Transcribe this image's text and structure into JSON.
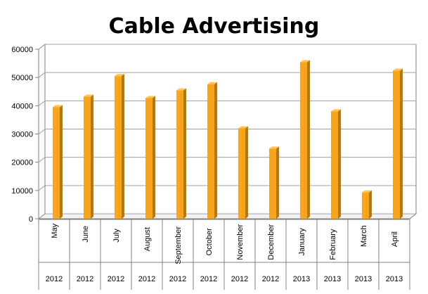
{
  "chart_data": {
    "type": "bar",
    "title": "Cable Advertising",
    "categories": [
      "May",
      "June",
      "July",
      "August",
      "September",
      "October",
      "November",
      "December",
      "January",
      "February",
      "March",
      "April"
    ],
    "years": [
      "2012",
      "2012",
      "2012",
      "2012",
      "2012",
      "2012",
      "2012",
      "2012",
      "2013",
      "2013",
      "2013",
      "2013"
    ],
    "values": [
      39500,
      43200,
      50500,
      42700,
      45400,
      47600,
      32000,
      24800,
      55400,
      38000,
      9300,
      52400
    ],
    "ylim": [
      0,
      60000
    ],
    "yticks": [
      0,
      10000,
      20000,
      30000,
      40000,
      50000,
      60000
    ],
    "grid": true,
    "legend": "none",
    "xlabel": "",
    "ylabel": "",
    "colors": {
      "bar_front": "#F7A51E",
      "bar_side": "#B57710",
      "bar_top": "#FCC456",
      "gridline": "#A0A0A0",
      "wall": "#FFFFFF",
      "axis": "#808080"
    }
  }
}
